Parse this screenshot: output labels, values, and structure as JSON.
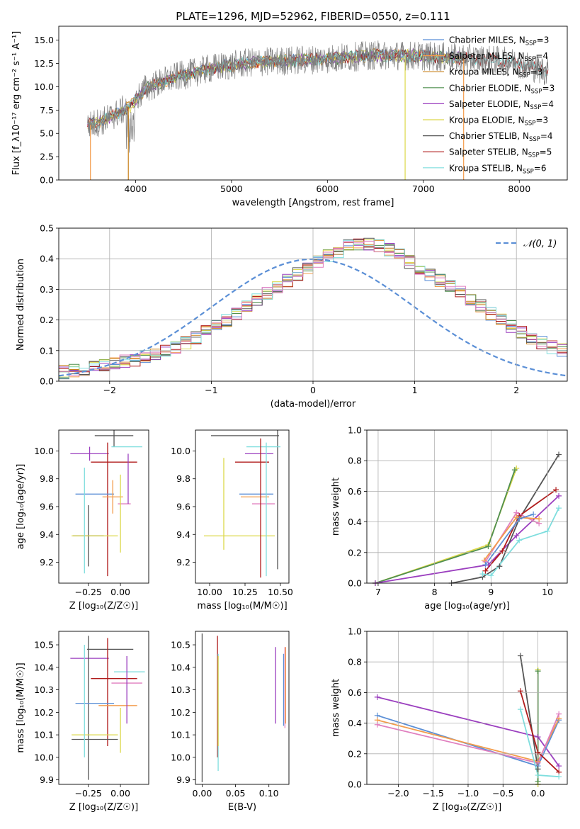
{
  "title": "PLATE=1296, MJD=52962, FIBERID=0550, z=0.111",
  "colors": {
    "chabrier_miles": "#5b8fd6",
    "salpeter_miles": "#f39c4b",
    "kroupa_miles": "#c8801a",
    "chabrier_elodie": "#4f8f4f",
    "salpeter_elodie": "#9b3fbf",
    "kroupa_elodie": "#dcd84a",
    "chabrier_stelib": "#555555",
    "salpeter_stelib": "#b01c1c",
    "kroupa_stelib": "#7fdede",
    "normal_curve": "#5b8fd6",
    "grid": "#b0b0b0",
    "data_spectrum": "#808080"
  },
  "chart_data": [
    {
      "id": "spectrum",
      "type": "line",
      "xlabel": "wavelength [Angstrom, rest frame]",
      "ylabel": "Flux [f_λ10⁻¹⁷ erg cm⁻² s⁻¹ A⁻¹]",
      "xlim": [
        3200,
        8500
      ],
      "ylim": [
        0,
        16.5
      ],
      "xticks": [
        4000,
        5000,
        6000,
        7000,
        8000
      ],
      "yticks": [
        0.0,
        2.5,
        5.0,
        7.5,
        10.0,
        12.5,
        15.0
      ],
      "grid": false,
      "legend_position": "right",
      "series": [
        {
          "name": "Chabrier MILES, N_SSP=3",
          "label_base": "Chabrier MILES, N",
          "label_sub": "SSP",
          "label_tail": "=3",
          "color": "#5b8fd6"
        },
        {
          "name": "Salpeter MILES, N_SSP=4",
          "label_base": "Salpeter MILES, N",
          "label_sub": "SSP",
          "label_tail": "=4",
          "color": "#f39c4b"
        },
        {
          "name": "Kroupa MILES, N_SSP=3",
          "label_base": "Kroupa MILES, N",
          "label_sub": "SSP",
          "label_tail": "=3",
          "color": "#c8801a"
        },
        {
          "name": "Chabrier ELODIE, N_SSP=3",
          "label_base": "Chabrier ELODIE, N",
          "label_sub": "SSP",
          "label_tail": "=3",
          "color": "#4f8f4f"
        },
        {
          "name": "Salpeter ELODIE, N_SSP=4",
          "label_base": "Salpeter ELODIE, N",
          "label_sub": "SSP",
          "label_tail": "=4",
          "color": "#9b3fbf"
        },
        {
          "name": "Kroupa ELODIE, N_SSP=3",
          "label_base": "Kroupa ELODIE, N",
          "label_sub": "SSP",
          "label_tail": "=3",
          "color": "#dcd84a"
        },
        {
          "name": "Chabrier STELIB, N_SSP=4",
          "label_base": "Chabrier STELIB, N",
          "label_sub": "SSP",
          "label_tail": "=4",
          "color": "#555555"
        },
        {
          "name": "Salpeter STELIB, N_SSP=5",
          "label_base": "Salpeter STELIB, N",
          "label_sub": "SSP",
          "label_tail": "=5",
          "color": "#b01c1c"
        },
        {
          "name": "Kroupa STELIB, N_SSP=6",
          "label_base": "Kroupa STELIB, N",
          "label_sub": "SSP",
          "label_tail": "=6",
          "color": "#7fdede"
        }
      ],
      "continuum_shape": [
        [
          3500,
          5.8
        ],
        [
          3700,
          6.5
        ],
        [
          3950,
          8.0
        ],
        [
          4100,
          9.8
        ],
        [
          4400,
          11.0
        ],
        [
          4800,
          12.0
        ],
        [
          5200,
          12.6
        ],
        [
          5600,
          12.8
        ],
        [
          6000,
          13.0
        ],
        [
          6500,
          13.4
        ],
        [
          7000,
          13.3
        ],
        [
          7500,
          13.0
        ],
        [
          7800,
          12.8
        ],
        [
          8000,
          12.5
        ],
        [
          8300,
          11.6
        ]
      ]
    },
    {
      "id": "residuals",
      "type": "step",
      "xlabel": "(data-model)/error",
      "ylabel": "Normed distribution",
      "xlim": [
        -2.5,
        2.5
      ],
      "ylim": [
        0,
        0.5
      ],
      "xticks": [
        -2,
        -1,
        0,
        1,
        2
      ],
      "yticks": [
        0.0,
        0.1,
        0.2,
        0.3,
        0.4,
        0.5
      ],
      "grid": true,
      "legend_position": "top-right",
      "legend_label": "𝒩(0, 1)",
      "bin_width": 0.1,
      "base_histogram": [
        0.03,
        0.035,
        0.04,
        0.045,
        0.05,
        0.055,
        0.065,
        0.07,
        0.08,
        0.09,
        0.1,
        0.11,
        0.125,
        0.14,
        0.16,
        0.18,
        0.2,
        0.22,
        0.245,
        0.27,
        0.29,
        0.31,
        0.33,
        0.35,
        0.37,
        0.39,
        0.41,
        0.425,
        0.44,
        0.445,
        0.45,
        0.445,
        0.43,
        0.41,
        0.39,
        0.37,
        0.35,
        0.33,
        0.31,
        0.29,
        0.27,
        0.245,
        0.22,
        0.2,
        0.18,
        0.16,
        0.14,
        0.125,
        0.11,
        0.1,
        0.09,
        0.08,
        0.07,
        0.06,
        0.05,
        0.045,
        0.04,
        0.035,
        0.03,
        0.025
      ]
    },
    {
      "id": "age_vs_z",
      "type": "scatter",
      "xlabel": "Z [log₁₀(Z/Z☉)]",
      "ylabel": "age [log₁₀(age/yr)]",
      "xlim": [
        -0.48,
        0.22
      ],
      "ylim": [
        9.05,
        10.15
      ],
      "xticks": [
        -0.25,
        0.0
      ],
      "yticks": [
        9.2,
        9.4,
        9.6,
        9.8,
        10.0
      ],
      "grid": false,
      "points": [
        {
          "x": -0.05,
          "y": 10.11,
          "xerr": 0.15,
          "yerr": 0.08,
          "color": "#555555"
        },
        {
          "x": -0.25,
          "y": 9.39,
          "xerr": 0.12,
          "yerr": 0.22,
          "color": "#555555"
        },
        {
          "x": 0.05,
          "y": 10.03,
          "xerr": 0.12,
          "yerr": 0.0,
          "color": "#7fdede"
        },
        {
          "x": -0.24,
          "y": 9.98,
          "xerr": 0.15,
          "yerr": 0.05,
          "color": "#9b3fbf"
        },
        {
          "x": -0.1,
          "y": 9.58,
          "xerr": 0.0,
          "yerr": 0.48,
          "color": "#b01c1c"
        },
        {
          "x": -0.05,
          "y": 9.92,
          "xerr": 0.18,
          "yerr": 0.0,
          "color": "#b01c1c"
        },
        {
          "x": -0.2,
          "y": 9.69,
          "xerr": 0.15,
          "yerr": 0.0,
          "color": "#5b8fd6"
        },
        {
          "x": -0.06,
          "y": 9.67,
          "xerr": 0.08,
          "yerr": 0.12,
          "color": "#f39c4b"
        },
        {
          "x": 0.03,
          "y": 9.62,
          "xerr": 0.05,
          "yerr": 0.0,
          "color": "#e07fbf"
        },
        {
          "x": 0.06,
          "y": 9.8,
          "xerr": 0.0,
          "yerr": 0.18,
          "color": "#9b3fbf"
        },
        {
          "x": -0.2,
          "y": 9.39,
          "xerr": 0.18,
          "yerr": 0.0,
          "color": "#dcd84a"
        },
        {
          "x": -0.28,
          "y": 9.5,
          "xerr": 0.0,
          "yerr": 0.38,
          "color": "#7fdede"
        },
        {
          "x": 0.0,
          "y": 9.55,
          "xerr": 0.0,
          "yerr": 0.28,
          "color": "#dcd84a"
        }
      ]
    },
    {
      "id": "age_vs_mass",
      "type": "scatter",
      "xlabel": "mass [log₁₀(M/M☉)]",
      "ylabel": "",
      "xlim": [
        9.9,
        10.56
      ],
      "ylim": [
        9.05,
        10.15
      ],
      "xticks": [
        10.0,
        10.25,
        10.5
      ],
      "yticks": [
        9.2,
        9.4,
        9.6,
        9.8,
        10.0
      ],
      "grid": false,
      "points": [
        {
          "x": 10.25,
          "y": 10.11,
          "xerr": 0.24,
          "yerr": 0.0,
          "color": "#555555"
        },
        {
          "x": 10.48,
          "y": 9.65,
          "xerr": 0.0,
          "yerr": 0.5,
          "color": "#555555"
        },
        {
          "x": 10.38,
          "y": 10.03,
          "xerr": 0.12,
          "yerr": 0.0,
          "color": "#7fdede"
        },
        {
          "x": 10.35,
          "y": 9.98,
          "xerr": 0.1,
          "yerr": 0.0,
          "color": "#9b3fbf"
        },
        {
          "x": 10.3,
          "y": 9.92,
          "xerr": 0.12,
          "yerr": 0.0,
          "color": "#b01c1c"
        },
        {
          "x": 10.33,
          "y": 9.69,
          "xerr": 0.12,
          "yerr": 0.0,
          "color": "#5b8fd6"
        },
        {
          "x": 10.32,
          "y": 9.67,
          "xerr": 0.1,
          "yerr": 0.0,
          "color": "#f39c4b"
        },
        {
          "x": 10.38,
          "y": 9.62,
          "xerr": 0.08,
          "yerr": 0.0,
          "color": "#e07fbf"
        },
        {
          "x": 10.21,
          "y": 9.39,
          "xerr": 0.25,
          "yerr": 0.0,
          "color": "#dcd84a"
        },
        {
          "x": 10.1,
          "y": 9.62,
          "xerr": 0.0,
          "yerr": 0.33,
          "color": "#dcd84a"
        },
        {
          "x": 10.36,
          "y": 9.59,
          "xerr": 0.0,
          "yerr": 0.5,
          "color": "#b01c1c"
        },
        {
          "x": 10.4,
          "y": 9.58,
          "xerr": 0.0,
          "yerr": 0.48,
          "color": "#7fdede"
        }
      ]
    },
    {
      "id": "mass_weight_vs_age",
      "type": "line",
      "xlabel": "age [log₁₀(age/yr)]",
      "ylabel": "mass weight",
      "xlim": [
        6.8,
        10.35
      ],
      "ylim": [
        0,
        1.0
      ],
      "xticks": [
        7,
        8,
        9,
        10
      ],
      "yticks": [
        0.0,
        0.2,
        0.4,
        0.6,
        0.8,
        1.0
      ],
      "grid": true,
      "series": [
        {
          "color": "#dcd84a",
          "x": [
            6.95,
            8.95,
            9.45
          ],
          "y": [
            0.0,
            0.25,
            0.75
          ]
        },
        {
          "color": "#4f8f4f",
          "x": [
            6.95,
            8.95,
            9.42
          ],
          "y": [
            0.0,
            0.24,
            0.74
          ]
        },
        {
          "color": "#9b3fbf",
          "x": [
            6.95,
            8.95,
            9.45,
            10.2
          ],
          "y": [
            0.0,
            0.12,
            0.31,
            0.57
          ]
        },
        {
          "color": "#555555",
          "x": [
            8.3,
            8.85,
            9.15,
            9.5,
            10.2
          ],
          "y": [
            0.0,
            0.04,
            0.11,
            0.42,
            0.84
          ]
        },
        {
          "color": "#b01c1c",
          "x": [
            8.9,
            9.2,
            9.5,
            10.15
          ],
          "y": [
            0.08,
            0.21,
            0.44,
            0.61
          ]
        },
        {
          "color": "#7fdede",
          "x": [
            8.85,
            9.0,
            9.5,
            10.0,
            10.2
          ],
          "y": [
            0.06,
            0.05,
            0.28,
            0.34,
            0.49
          ]
        },
        {
          "color": "#e07fbf",
          "x": [
            8.9,
            9.45,
            9.85
          ],
          "y": [
            0.14,
            0.46,
            0.39
          ]
        },
        {
          "color": "#f39c4b",
          "x": [
            8.88,
            9.45,
            9.85
          ],
          "y": [
            0.15,
            0.43,
            0.42
          ]
        },
        {
          "color": "#5b8fd6",
          "x": [
            8.9,
            9.5,
            9.75
          ],
          "y": [
            0.12,
            0.42,
            0.45
          ]
        }
      ]
    },
    {
      "id": "mass_vs_z",
      "type": "scatter",
      "xlabel": "Z [log₁₀(Z/Z☉)]",
      "ylabel": "mass [log₁₀(M/M☉)]",
      "xlim": [
        -0.48,
        0.22
      ],
      "ylim": [
        9.88,
        10.56
      ],
      "xticks": [
        -0.25,
        0.0
      ],
      "yticks": [
        9.9,
        10.0,
        10.1,
        10.2,
        10.3,
        10.4,
        10.5
      ],
      "grid": false,
      "points": [
        {
          "x": -0.08,
          "y": 10.48,
          "xerr": 0.18,
          "yerr": 0.0,
          "color": "#555555"
        },
        {
          "x": -0.24,
          "y": 10.44,
          "xerr": 0.15,
          "yerr": 0.0,
          "color": "#9b3fbf"
        },
        {
          "x": -0.25,
          "y": 10.22,
          "xerr": 0.0,
          "yerr": 0.32,
          "color": "#555555"
        },
        {
          "x": -0.1,
          "y": 10.29,
          "xerr": 0.0,
          "yerr": 0.24,
          "color": "#b01c1c"
        },
        {
          "x": -0.05,
          "y": 10.35,
          "xerr": 0.18,
          "yerr": 0.0,
          "color": "#b01c1c"
        },
        {
          "x": -0.2,
          "y": 10.24,
          "xerr": 0.15,
          "yerr": 0.0,
          "color": "#5b8fd6"
        },
        {
          "x": -0.02,
          "y": 10.23,
          "xerr": 0.15,
          "yerr": 0.0,
          "color": "#f39c4b"
        },
        {
          "x": 0.05,
          "y": 10.33,
          "xerr": 0.12,
          "yerr": 0.0,
          "color": "#e07fbf"
        },
        {
          "x": 0.07,
          "y": 10.38,
          "xerr": 0.12,
          "yerr": 0.0,
          "color": "#7fdede"
        },
        {
          "x": -0.2,
          "y": 10.1,
          "xerr": 0.18,
          "yerr": 0.0,
          "color": "#dcd84a"
        },
        {
          "x": -0.2,
          "y": 10.08,
          "xerr": 0.18,
          "yerr": 0.0,
          "color": "#555555"
        },
        {
          "x": 0.05,
          "y": 10.3,
          "xerr": 0.0,
          "yerr": 0.15,
          "color": "#9b3fbf"
        },
        {
          "x": -0.28,
          "y": 10.25,
          "xerr": 0.0,
          "yerr": 0.25,
          "color": "#7fdede"
        },
        {
          "x": 0.0,
          "y": 10.12,
          "xerr": 0.0,
          "yerr": 0.1,
          "color": "#dcd84a"
        }
      ]
    },
    {
      "id": "mass_vs_ebv",
      "type": "scatter",
      "xlabel": "E(B-V)",
      "ylabel": "",
      "xlim": [
        -0.01,
        0.13
      ],
      "ylim": [
        9.88,
        10.56
      ],
      "xticks": [
        0.0,
        0.05,
        0.1
      ],
      "yticks": [
        9.9,
        10.0,
        10.1,
        10.2,
        10.3,
        10.4,
        10.5
      ],
      "grid": false,
      "points": [
        {
          "x": 0.0,
          "y": 10.22,
          "xerr": 0.0,
          "yerr": 0.33,
          "color": "#555555"
        },
        {
          "x": 0.023,
          "y": 10.27,
          "xerr": 0.0,
          "yerr": 0.27,
          "color": "#b01c1c"
        },
        {
          "x": 0.024,
          "y": 10.2,
          "xerr": 0.0,
          "yerr": 0.26,
          "color": "#7fdede"
        },
        {
          "x": 0.024,
          "y": 10.25,
          "xerr": 0.0,
          "yerr": 0.2,
          "color": "#dcd84a"
        },
        {
          "x": 0.11,
          "y": 10.32,
          "xerr": 0.0,
          "yerr": 0.17,
          "color": "#9b3fbf"
        },
        {
          "x": 0.122,
          "y": 10.3,
          "xerr": 0.0,
          "yerr": 0.16,
          "color": "#5b8fd6"
        },
        {
          "x": 0.124,
          "y": 10.31,
          "xerr": 0.0,
          "yerr": 0.18,
          "color": "#e07fbf"
        },
        {
          "x": 0.125,
          "y": 10.32,
          "xerr": 0.0,
          "yerr": 0.17,
          "color": "#f39c4b"
        }
      ]
    },
    {
      "id": "mass_weight_vs_z",
      "type": "line",
      "xlabel": "Z [log₁₀(Z/Z☉)]",
      "ylabel": "mass weight",
      "xlim": [
        -2.45,
        0.42
      ],
      "ylim": [
        0,
        1.0
      ],
      "xticks": [
        -2.0,
        -1.5,
        -1.0,
        -0.5,
        0.0
      ],
      "yticks": [
        0.0,
        0.2,
        0.4,
        0.6,
        0.8,
        1.0
      ],
      "grid": true,
      "series": [
        {
          "color": "#9b3fbf",
          "x": [
            -2.3,
            0.0,
            0.3
          ],
          "y": [
            0.57,
            0.31,
            0.12
          ]
        },
        {
          "color": "#5b8fd6",
          "x": [
            -2.3,
            0.0,
            0.3
          ],
          "y": [
            0.45,
            0.12,
            0.42
          ]
        },
        {
          "color": "#f39c4b",
          "x": [
            -2.3,
            0.0,
            0.3
          ],
          "y": [
            0.42,
            0.15,
            0.43
          ]
        },
        {
          "color": "#e07fbf",
          "x": [
            -2.3,
            0.0,
            0.3
          ],
          "y": [
            0.39,
            0.14,
            0.46
          ]
        },
        {
          "color": "#555555",
          "x": [
            -0.25,
            0.0,
            0.0
          ],
          "y": [
            0.84,
            0.1,
            0.0
          ]
        },
        {
          "color": "#b01c1c",
          "x": [
            -0.25,
            0.0,
            0.3
          ],
          "y": [
            0.61,
            0.21,
            0.08
          ]
        },
        {
          "color": "#7fdede",
          "x": [
            -0.25,
            0.0,
            0.3
          ],
          "y": [
            0.49,
            0.06,
            0.05
          ]
        },
        {
          "color": "#dcd84a",
          "x": [
            0.0,
            0.0
          ],
          "y": [
            0.75,
            0.0
          ]
        },
        {
          "color": "#4f8f4f",
          "x": [
            0.0,
            0.0
          ],
          "y": [
            0.74,
            0.02
          ]
        }
      ]
    }
  ]
}
